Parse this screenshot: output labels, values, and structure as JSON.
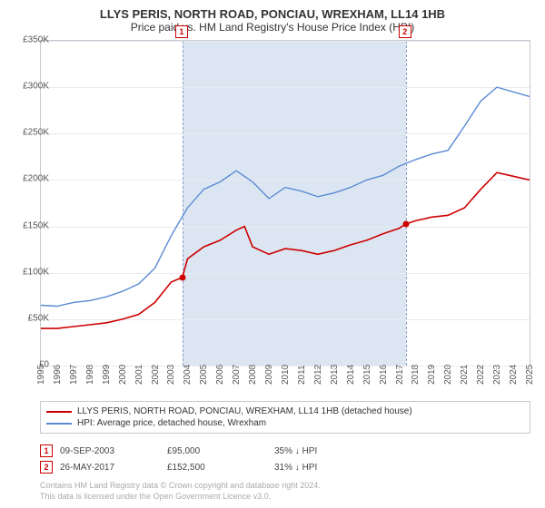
{
  "title": "LLYS PERIS, NORTH ROAD, PONCIAU, WREXHAM, LL14 1HB",
  "subtitle": "Price paid vs. HM Land Registry's House Price Index (HPI)",
  "chart": {
    "type": "line",
    "x_start_year": 1995,
    "x_end_year": 2025,
    "ylim": [
      0,
      350000
    ],
    "ytick_step": 50000,
    "y_labels": [
      "£0",
      "£50K",
      "£100K",
      "£150K",
      "£200K",
      "£250K",
      "£300K",
      "£350K"
    ],
    "background_color": "#ffffff",
    "grid_color": "#eaeaf0",
    "border_color": "#c8c8d0",
    "band_color": "#dce6f2",
    "band_line_color": "#8a9cc8",
    "band": {
      "start_year": 2003.69,
      "end_year": 2017.4
    },
    "title_fontsize": 13,
    "subtitle_fontsize": 12,
    "axis_label_fontsize": 10,
    "series": [
      {
        "id": "property",
        "color": "#cc0000",
        "line_width": 1.6,
        "legend": "LLYS PERIS, NORTH ROAD, PONCIAU, WREXHAM, LL14 1HB (detached house)",
        "x": [
          1995,
          1996,
          1997,
          1998,
          1999,
          2000,
          2001,
          2002,
          2003,
          2003.69,
          2004,
          2005,
          2006,
          2007,
          2007.5,
          2008,
          2009,
          2010,
          2011,
          2012,
          2013,
          2014,
          2015,
          2016,
          2017,
          2017.4,
          2018,
          2019,
          2020,
          2021,
          2022,
          2023,
          2024,
          2025
        ],
        "y": [
          40000,
          40000,
          42000,
          44000,
          46000,
          50000,
          55000,
          68000,
          90000,
          95000,
          115000,
          128000,
          135000,
          146000,
          150000,
          128000,
          120000,
          126000,
          124000,
          120000,
          124000,
          130000,
          135000,
          142000,
          148000,
          152500,
          156000,
          160000,
          162000,
          170000,
          190000,
          208000,
          204000,
          200000
        ]
      },
      {
        "id": "hpi",
        "color": "#5b8bd4",
        "line_width": 1.4,
        "legend": "HPI: Average price, detached house, Wrexham",
        "x": [
          1995,
          1996,
          1997,
          1998,
          1999,
          2000,
          2001,
          2002,
          2003,
          2004,
          2005,
          2006,
          2007,
          2008,
          2009,
          2010,
          2011,
          2012,
          2013,
          2014,
          2015,
          2016,
          2017,
          2018,
          2019,
          2020,
          2021,
          2022,
          2023,
          2024,
          2025
        ],
        "y": [
          65000,
          64000,
          68000,
          70000,
          74000,
          80000,
          88000,
          105000,
          140000,
          170000,
          190000,
          198000,
          210000,
          198000,
          180000,
          192000,
          188000,
          182000,
          186000,
          192000,
          200000,
          205000,
          215000,
          222000,
          228000,
          232000,
          258000,
          285000,
          300000,
          295000,
          290000
        ]
      }
    ],
    "sale_markers": [
      {
        "idx": "1",
        "year": 2003.69,
        "y": 95000
      },
      {
        "idx": "2",
        "year": 2017.4,
        "y": 152500
      }
    ]
  },
  "legend_rows": [
    {
      "color": "#cc0000",
      "label": "LLYS PERIS, NORTH ROAD, PONCIAU, WREXHAM, LL14 1HB (detached house)"
    },
    {
      "color": "#5b8bd4",
      "label": "HPI: Average price, detached house, Wrexham"
    }
  ],
  "sales": [
    {
      "idx": "1",
      "date": "09-SEP-2003",
      "price": "£95,000",
      "diff": "35% ↓ HPI"
    },
    {
      "idx": "2",
      "date": "26-MAY-2017",
      "price": "£152,500",
      "diff": "31% ↓ HPI"
    }
  ],
  "attribution": [
    "Contains HM Land Registry data © Crown copyright and database right 2024.",
    "This data is licensed under the Open Government Licence v3.0."
  ]
}
